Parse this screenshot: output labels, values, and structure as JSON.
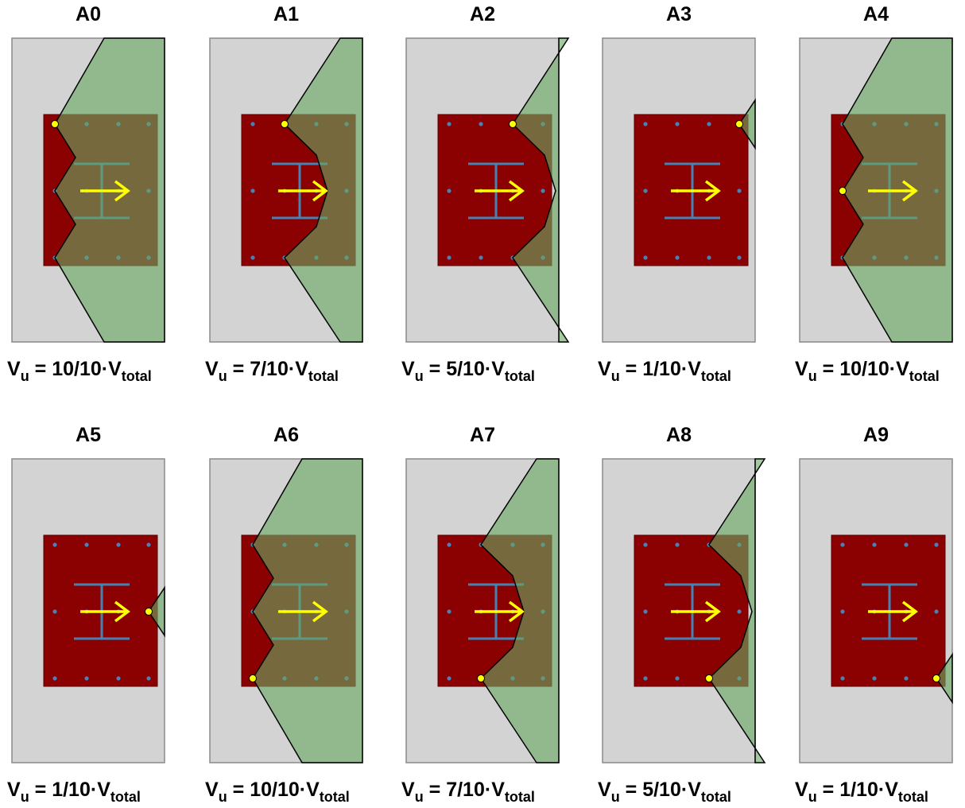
{
  "colors": {
    "concrete": "#d3d3d3",
    "plate": "#8b0000",
    "breakout": "#6aaa64",
    "column": "#4682b4",
    "anchor": "#4682b4",
    "arrow": "#ffff00",
    "critical_anchor": "#ffff00",
    "outline": "#000000"
  },
  "formula_parts": {
    "v": "V",
    "u": "u",
    "eq": " = ",
    "dot": "·",
    "total": "total"
  },
  "panels": [
    {
      "id": "A0",
      "row": 0,
      "col": 0,
      "fraction": "10/10",
      "case": "left_v",
      "anchor_x": 0,
      "anchor_y": 0
    },
    {
      "id": "A1",
      "row": 0,
      "col": 1,
      "fraction": "7/10",
      "case": "top_v",
      "anchor_x": 1,
      "anchor_y": 0
    },
    {
      "id": "A2",
      "row": 0,
      "col": 2,
      "fraction": "5/10",
      "case": "top_v",
      "anchor_x": 2,
      "anchor_y": 0
    },
    {
      "id": "A3",
      "row": 0,
      "col": 3,
      "fraction": "1/10",
      "case": "edge_small",
      "anchor_x": 3,
      "anchor_y": 0
    },
    {
      "id": "A4",
      "row": 0,
      "col": 4,
      "fraction": "10/10",
      "case": "left_v_mid",
      "anchor_x": 0,
      "anchor_y": 1
    },
    {
      "id": "A5",
      "row": 1,
      "col": 0,
      "fraction": "1/10",
      "case": "edge_small",
      "anchor_x": 3,
      "anchor_y": 1
    },
    {
      "id": "A6",
      "row": 1,
      "col": 1,
      "fraction": "10/10",
      "case": "left_v_bottom",
      "anchor_x": 0,
      "anchor_y": 2
    },
    {
      "id": "A7",
      "row": 1,
      "col": 2,
      "fraction": "7/10",
      "case": "bottom_v",
      "anchor_x": 1,
      "anchor_y": 2
    },
    {
      "id": "A8",
      "row": 1,
      "col": 3,
      "fraction": "5/10",
      "case": "bottom_v",
      "anchor_x": 2,
      "anchor_y": 2
    },
    {
      "id": "A9",
      "row": 1,
      "col": 4,
      "fraction": "1/10",
      "case": "edge_small",
      "anchor_x": 3,
      "anchor_y": 2
    }
  ]
}
